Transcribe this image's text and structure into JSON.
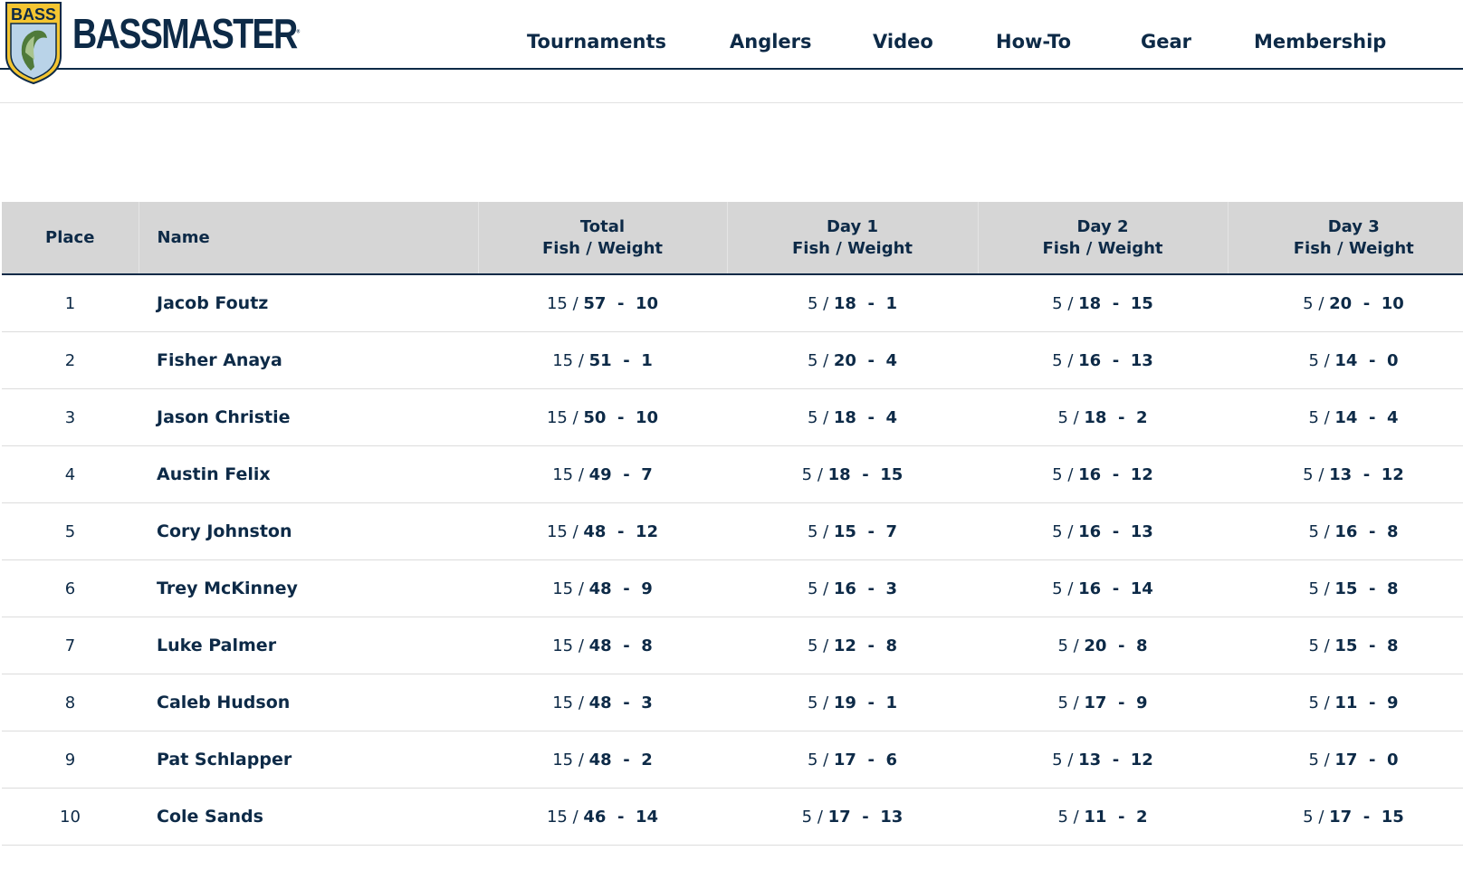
{
  "brand": {
    "wordmark": "BASSMASTER",
    "shield_text": "BASS",
    "colors": {
      "navy": "#0d2a47",
      "gold": "#f4c531",
      "shield_blue": "#b9d3e8",
      "fish_green": "#4f7a3a"
    }
  },
  "nav": [
    "Tournaments",
    "Anglers",
    "Video",
    "How-To",
    "Gear",
    "Membership"
  ],
  "table": {
    "headers": {
      "place": "Place",
      "name": "Name",
      "total_top": "Total",
      "day1_top": "Day 1",
      "day2_top": "Day 2",
      "day3_top": "Day 3",
      "sub": "Fish / Weight"
    },
    "rows": [
      {
        "place": "1",
        "name": "Jacob Foutz",
        "total": [
          "15",
          "57",
          "10"
        ],
        "day1": [
          "5",
          "18",
          "1"
        ],
        "day2": [
          "5",
          "18",
          "15"
        ],
        "day3": [
          "5",
          "20",
          "10"
        ]
      },
      {
        "place": "2",
        "name": "Fisher Anaya",
        "total": [
          "15",
          "51",
          "1"
        ],
        "day1": [
          "5",
          "20",
          "4"
        ],
        "day2": [
          "5",
          "16",
          "13"
        ],
        "day3": [
          "5",
          "14",
          "0"
        ]
      },
      {
        "place": "3",
        "name": "Jason Christie",
        "total": [
          "15",
          "50",
          "10"
        ],
        "day1": [
          "5",
          "18",
          "4"
        ],
        "day2": [
          "5",
          "18",
          "2"
        ],
        "day3": [
          "5",
          "14",
          "4"
        ]
      },
      {
        "place": "4",
        "name": "Austin Felix",
        "total": [
          "15",
          "49",
          "7"
        ],
        "day1": [
          "5",
          "18",
          "15"
        ],
        "day2": [
          "5",
          "16",
          "12"
        ],
        "day3": [
          "5",
          "13",
          "12"
        ]
      },
      {
        "place": "5",
        "name": "Cory Johnston",
        "total": [
          "15",
          "48",
          "12"
        ],
        "day1": [
          "5",
          "15",
          "7"
        ],
        "day2": [
          "5",
          "16",
          "13"
        ],
        "day3": [
          "5",
          "16",
          "8"
        ]
      },
      {
        "place": "6",
        "name": "Trey McKinney",
        "total": [
          "15",
          "48",
          "9"
        ],
        "day1": [
          "5",
          "16",
          "3"
        ],
        "day2": [
          "5",
          "16",
          "14"
        ],
        "day3": [
          "5",
          "15",
          "8"
        ]
      },
      {
        "place": "7",
        "name": "Luke Palmer",
        "total": [
          "15",
          "48",
          "8"
        ],
        "day1": [
          "5",
          "12",
          "8"
        ],
        "day2": [
          "5",
          "20",
          "8"
        ],
        "day3": [
          "5",
          "15",
          "8"
        ]
      },
      {
        "place": "8",
        "name": "Caleb Hudson",
        "total": [
          "15",
          "48",
          "3"
        ],
        "day1": [
          "5",
          "19",
          "1"
        ],
        "day2": [
          "5",
          "17",
          "9"
        ],
        "day3": [
          "5",
          "11",
          "9"
        ]
      },
      {
        "place": "9",
        "name": "Pat Schlapper",
        "total": [
          "15",
          "48",
          "2"
        ],
        "day1": [
          "5",
          "17",
          "6"
        ],
        "day2": [
          "5",
          "13",
          "12"
        ],
        "day3": [
          "5",
          "17",
          "0"
        ]
      },
      {
        "place": "10",
        "name": "Cole Sands",
        "total": [
          "15",
          "46",
          "14"
        ],
        "day1": [
          "5",
          "17",
          "13"
        ],
        "day2": [
          "5",
          "11",
          "2"
        ],
        "day3": [
          "5",
          "17",
          "15"
        ]
      }
    ]
  }
}
